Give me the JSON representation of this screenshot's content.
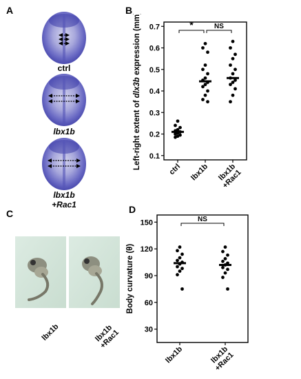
{
  "panels": {
    "a": "A",
    "b": "B",
    "c": "C",
    "d": "D"
  },
  "panel_a": {
    "labels": [
      {
        "text": "ctrl",
        "italic": false
      },
      {
        "text": "lbx1b",
        "italic": true
      },
      {
        "text": "lbx1b",
        "italic": true,
        "line2": "+Rac1"
      }
    ]
  },
  "panel_c": {
    "labels": [
      {
        "line1": "lbx1b",
        "line2": ""
      },
      {
        "line1": "lbx1b",
        "line2": "+Rac1"
      }
    ]
  },
  "chart_data": [
    {
      "type": "scatter",
      "panel": "B",
      "title": "",
      "ylabel": "Left-right extent of dlx3b expression (mm)",
      "ylabel_parts": [
        "Left-right extent of ",
        "dlx3b",
        " expression (mm)"
      ],
      "ylim": [
        0.08,
        0.72
      ],
      "yticks": [
        "0.1",
        "0.2",
        "0.3",
        "0.4",
        "0.5",
        "0.6",
        "0.7"
      ],
      "categories": [
        "ctrl",
        "lbx1b",
        "lbx1b +Rac1"
      ],
      "category_lines": [
        [
          "ctrl"
        ],
        [
          "lbx1b"
        ],
        [
          "lbx1b",
          "+Rac1"
        ]
      ],
      "series": [
        {
          "category": "ctrl",
          "mean": 0.21,
          "points": [
            0.26,
            0.24,
            0.23,
            0.22,
            0.215,
            0.21,
            0.205,
            0.2,
            0.195,
            0.19,
            0.185
          ]
        },
        {
          "category": "lbx1b",
          "mean": 0.445,
          "points": [
            0.62,
            0.6,
            0.58,
            0.52,
            0.5,
            0.48,
            0.46,
            0.45,
            0.44,
            0.43,
            0.42,
            0.4,
            0.38,
            0.36,
            0.35
          ]
        },
        {
          "category": "lbx1b +Rac1",
          "mean": 0.46,
          "points": [
            0.63,
            0.6,
            0.57,
            0.55,
            0.52,
            0.5,
            0.48,
            0.46,
            0.45,
            0.44,
            0.43,
            0.41,
            0.38,
            0.35
          ]
        }
      ],
      "annotations": [
        {
          "text": "*",
          "from": 0,
          "to": 1
        },
        {
          "text": "NS",
          "from": 1,
          "to": 2
        }
      ]
    },
    {
      "type": "scatter",
      "panel": "D",
      "title": "",
      "ylabel": "Body curvature (θ)",
      "ylim": [
        15,
        158
      ],
      "yticks": [
        "30",
        "60",
        "90",
        "120",
        "150"
      ],
      "categories": [
        "lbx1b",
        "lbx1b +Rac1"
      ],
      "category_lines": [
        [
          "lbx1b"
        ],
        [
          "lbx1b",
          "+Rac1"
        ]
      ],
      "series": [
        {
          "category": "lbx1b",
          "mean": 104,
          "points": [
            122,
            118,
            114,
            110,
            107,
            105,
            103,
            100,
            98,
            95,
            91,
            75
          ]
        },
        {
          "category": "lbx1b +Rac1",
          "mean": 102,
          "points": [
            122,
            117,
            113,
            109,
            106,
            104,
            102,
            99,
            97,
            93,
            88,
            75
          ]
        }
      ],
      "annotations": [
        {
          "text": "NS",
          "from": 0,
          "to": 1
        }
      ]
    }
  ]
}
